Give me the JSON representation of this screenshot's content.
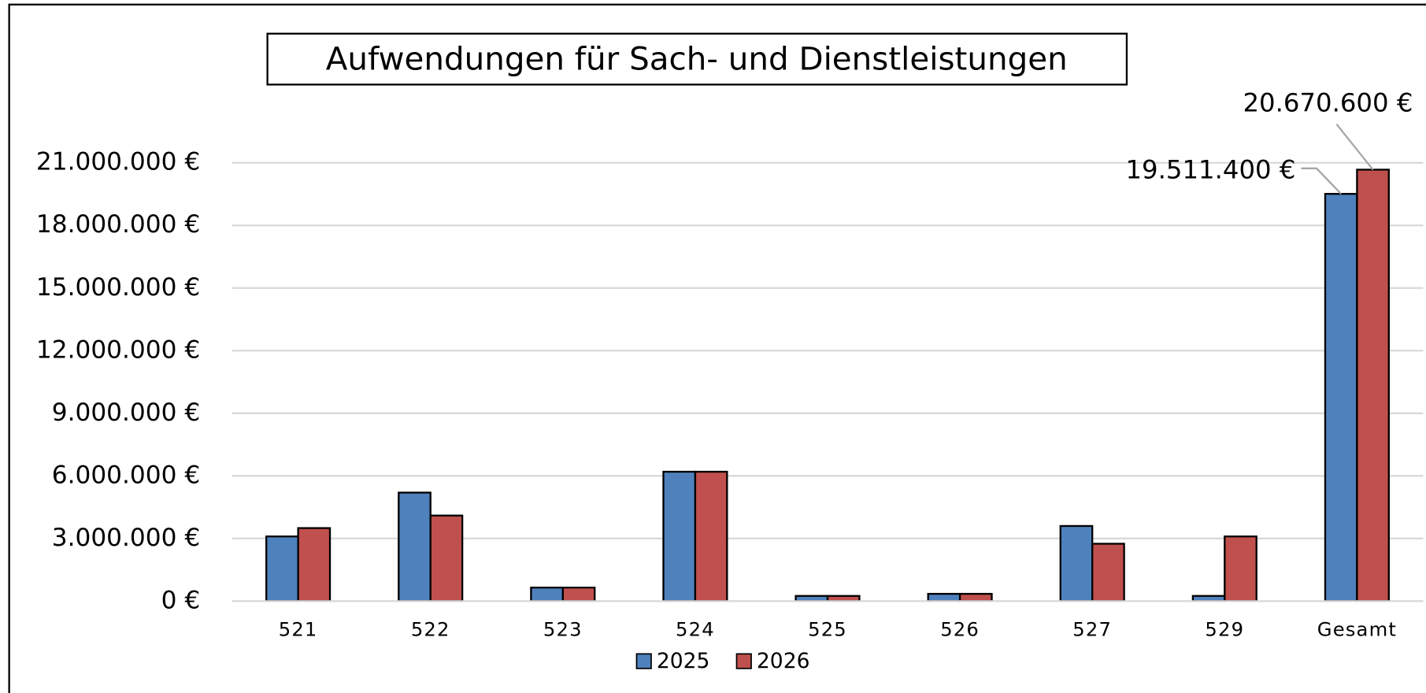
{
  "chart_data": {
    "type": "bar",
    "title": "Aufwendungen für Sach- und Dienstleistungen",
    "categories": [
      "521",
      "522",
      "523",
      "524",
      "525",
      "526",
      "527",
      "529",
      "Gesamt"
    ],
    "series": [
      {
        "name": "2025",
        "color": "#4f81bd",
        "values": [
          3100000,
          5200000,
          650000,
          6200000,
          250000,
          350000,
          3600000,
          250000,
          19511400
        ],
        "value_labels": [
          null,
          null,
          null,
          null,
          null,
          null,
          null,
          null,
          "19.511.400 €"
        ]
      },
      {
        "name": "2026",
        "color": "#c0504d",
        "values": [
          3500000,
          4100000,
          650000,
          6200000,
          250000,
          350000,
          2750000,
          3100000,
          20670600
        ],
        "value_labels": [
          null,
          null,
          null,
          null,
          null,
          null,
          null,
          null,
          "20.670.600 €"
        ]
      }
    ],
    "ylim": [
      0,
      21000000
    ],
    "yticks": [
      {
        "value": 0,
        "label": "0 €"
      },
      {
        "value": 3000000,
        "label": "3.000.000 €"
      },
      {
        "value": 6000000,
        "label": "6.000.000 €"
      },
      {
        "value": 9000000,
        "label": "9.000.000 €"
      },
      {
        "value": 12000000,
        "label": "12.000.000 €"
      },
      {
        "value": 15000000,
        "label": "15.000.000 €"
      },
      {
        "value": 18000000,
        "label": "18.000.000 €"
      },
      {
        "value": 21000000,
        "label": "21.000.000 €"
      }
    ],
    "grid": true,
    "legend": "bottom"
  }
}
